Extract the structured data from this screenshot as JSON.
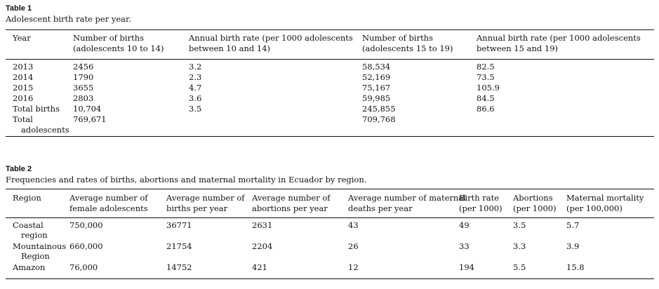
{
  "table1": {
    "label": "Table 1",
    "caption": "Adolescent birth rate per year.",
    "headers": [
      [
        "Year"
      ],
      [
        "Number of births",
        "(adolescents 10 to 14)"
      ],
      [
        "Annual birth rate (per 1000 adolescents",
        "between 10 and 14)"
      ],
      [
        "Number of births",
        "(adolescents 15 to 19)"
      ],
      [
        "Annual birth rate (per 1000 adolescents",
        "between 15 and 19)"
      ]
    ],
    "rows": [
      [
        "2013",
        "2456",
        "3.2",
        "58,534",
        "82.5"
      ],
      [
        "2014",
        "1790",
        "2.3",
        "52,169",
        "73.5"
      ],
      [
        "2015",
        "3655",
        "4.7",
        "75,167",
        "105.9"
      ],
      [
        "2016",
        "2803",
        "3.6",
        "59,985",
        "84.5"
      ],
      [
        "Total births",
        "10,704",
        "3.5",
        "245,855",
        "86.6"
      ]
    ],
    "last_row": {
      "label_line1": "Total",
      "label_line2": "adolescents",
      "values": [
        "769,671",
        "",
        "709,768",
        ""
      ]
    }
  },
  "table2": {
    "label": "Table 2",
    "caption": "Frequencies and rates of births, abortions and maternal mortality in Ecuador by region.",
    "headers": [
      [
        "Region"
      ],
      [
        "Average number of",
        "female adolescents"
      ],
      [
        "Average number of",
        "births per year"
      ],
      [
        "Average number of",
        "abortions per year"
      ],
      [
        "Average number of maternal",
        "deaths per year"
      ],
      [
        "Birth rate",
        "(per 1000)"
      ],
      [
        "Abortions",
        "(per 1000)"
      ],
      [
        "Maternal mortality",
        "(per 100,000)"
      ]
    ],
    "rows": [
      {
        "region": [
          "Coastal",
          "region"
        ],
        "values": [
          "750,000",
          "36771",
          "2631",
          "43",
          "49",
          "3.5",
          "5.7"
        ]
      },
      {
        "region": [
          "Mountainous",
          "Region"
        ],
        "values": [
          "660,000",
          "21754",
          "2204",
          "26",
          "33",
          "3.3",
          "3.9"
        ]
      },
      {
        "region": [
          "Amazon"
        ],
        "values": [
          "76,000",
          "14752",
          "421",
          "12",
          "194",
          "5.5",
          "15.8"
        ]
      }
    ]
  }
}
